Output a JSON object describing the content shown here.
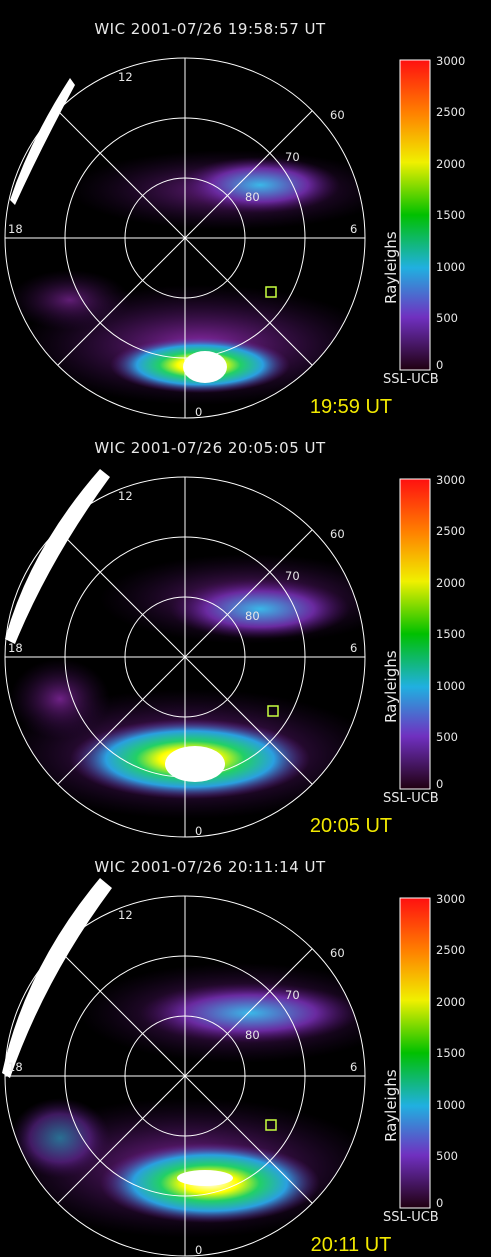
{
  "panels": [
    {
      "title": "WIC 2001-07/26 19:58:57 UT",
      "time_label": "19:59 UT"
    },
    {
      "title": "WIC 2001-07/26 20:05:05 UT",
      "time_label": "20:05 UT"
    },
    {
      "title": "WIC 2001-07/26 20:11:14 UT",
      "time_label": "20:11 UT"
    }
  ],
  "grid_labels": {
    "noon": "12",
    "midnight": "0",
    "dusk": "18",
    "dawn": "6",
    "lat60": "60",
    "lat70": "70",
    "lat80": "80"
  },
  "colorbar": {
    "label": "Rayleighs",
    "ticks": [
      "3000",
      "2500",
      "2000",
      "1500",
      "1000",
      "500",
      "0"
    ],
    "credit": "SSL-UCB"
  },
  "colors": {
    "yellow_label": "#f2e900",
    "grid": "#ffffff"
  }
}
